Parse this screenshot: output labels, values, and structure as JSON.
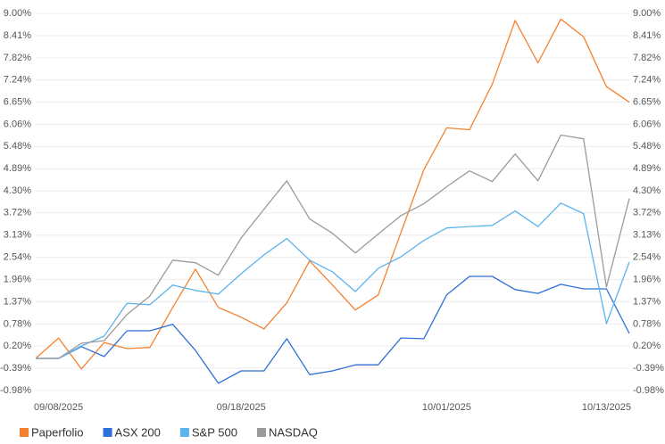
{
  "chart_data": {
    "type": "line",
    "categories": [
      null,
      "09/08/2025",
      null,
      null,
      null,
      null,
      null,
      null,
      null,
      "09/18/2025",
      null,
      null,
      null,
      null,
      null,
      null,
      null,
      null,
      "10/01/2025",
      null,
      null,
      null,
      null,
      null,
      null,
      "10/13/2025",
      null
    ],
    "ylim": [
      -0.98,
      9.0
    ],
    "yticks": [
      {
        "value": 9.0,
        "label": "9.00%"
      },
      {
        "value": 8.41,
        "label": "8.41%"
      },
      {
        "value": 7.82,
        "label": "7.82%"
      },
      {
        "value": 7.24,
        "label": "7.24%"
      },
      {
        "value": 6.65,
        "label": "6.65%"
      },
      {
        "value": 6.06,
        "label": "6.06%"
      },
      {
        "value": 5.48,
        "label": "5.48%"
      },
      {
        "value": 4.89,
        "label": "4.89%"
      },
      {
        "value": 4.3,
        "label": "4.30%"
      },
      {
        "value": 3.72,
        "label": "3.72%"
      },
      {
        "value": 3.13,
        "label": "3.13%"
      },
      {
        "value": 2.54,
        "label": "2.54%"
      },
      {
        "value": 1.96,
        "label": "1.96%"
      },
      {
        "value": 1.37,
        "label": "1.37%"
      },
      {
        "value": 0.78,
        "label": "0.78%"
      },
      {
        "value": 0.2,
        "label": "0.20%"
      },
      {
        "value": -0.39,
        "label": "-0.39%"
      },
      {
        "value": -0.98,
        "label": "-0.98%"
      }
    ],
    "grid": true,
    "legend": "bottom",
    "series": [
      {
        "name": "Paperfolio",
        "color": "#f5812f",
        "values": [
          -0.13,
          0.41,
          -0.41,
          0.29,
          0.13,
          0.16,
          1.22,
          2.23,
          1.22,
          0.96,
          0.65,
          1.34,
          2.45,
          1.81,
          1.15,
          1.55,
          3.2,
          4.86,
          5.97,
          5.92,
          7.13,
          8.81,
          7.69,
          8.85,
          8.38,
          7.06,
          6.65
        ]
      },
      {
        "name": "ASX 200",
        "color": "#2f6fd8",
        "values": [
          -0.13,
          -0.13,
          0.18,
          -0.08,
          0.6,
          0.6,
          0.77,
          0.08,
          -0.79,
          -0.46,
          -0.46,
          0.39,
          -0.56,
          -0.46,
          -0.3,
          -0.3,
          0.41,
          0.39,
          1.55,
          2.04,
          2.04,
          1.69,
          1.59,
          1.83,
          1.71,
          1.71,
          0.53
        ]
      },
      {
        "name": "S&P 500",
        "color": "#5cb3ee",
        "values": [
          -0.13,
          -0.13,
          0.2,
          0.46,
          1.33,
          1.29,
          1.81,
          1.67,
          1.57,
          2.11,
          2.61,
          3.04,
          2.47,
          2.16,
          1.64,
          2.25,
          2.56,
          2.99,
          3.32,
          3.36,
          3.39,
          3.77,
          3.36,
          3.98,
          3.7,
          0.79,
          2.42
        ]
      },
      {
        "name": "NASDAQ",
        "color": "#9a9a9a",
        "values": [
          -0.13,
          -0.13,
          0.27,
          0.34,
          1.03,
          1.52,
          2.47,
          2.4,
          2.07,
          3.06,
          3.82,
          4.57,
          3.56,
          3.18,
          2.66,
          3.16,
          3.65,
          3.96,
          4.41,
          4.83,
          4.55,
          5.28,
          4.57,
          5.78,
          5.68,
          1.76,
          4.1
        ]
      }
    ]
  }
}
